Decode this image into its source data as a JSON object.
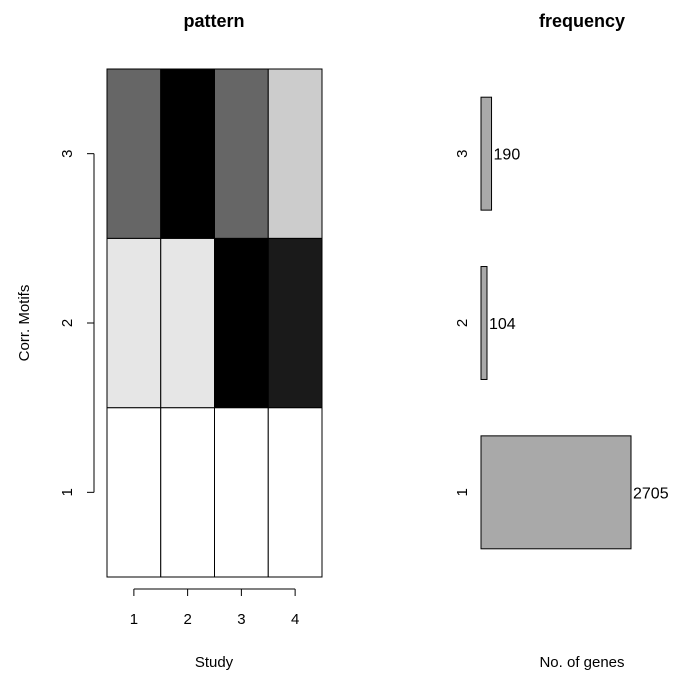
{
  "chart_data": [
    {
      "type": "heatmap",
      "title": "pattern",
      "xlabel": "Study",
      "ylabel": "Corr. Motifs",
      "x_categories": [
        "1",
        "2",
        "3",
        "4"
      ],
      "y_categories": [
        "1",
        "2",
        "3"
      ],
      "values": [
        [
          0.0,
          0.0,
          0.0,
          0.0
        ],
        [
          0.1,
          0.1,
          1.0,
          0.9
        ],
        [
          0.6,
          1.0,
          0.6,
          0.2
        ]
      ],
      "colors": [
        [
          "#ffffff",
          "#ffffff",
          "#ffffff",
          "#ffffff"
        ],
        [
          "#e6e6e6",
          "#e6e6e6",
          "#000000",
          "#1a1a1a"
        ],
        [
          "#666666",
          "#000000",
          "#666666",
          "#cccccc"
        ]
      ]
    },
    {
      "type": "bar",
      "orientation": "horizontal",
      "title": "frequency",
      "xlabel": "No. of genes",
      "categories": [
        "1",
        "2",
        "3"
      ],
      "values": [
        2705,
        104,
        190
      ],
      "data_labels": [
        "2705",
        "104",
        "190"
      ],
      "bar_color": "#a9a9a9"
    }
  ]
}
